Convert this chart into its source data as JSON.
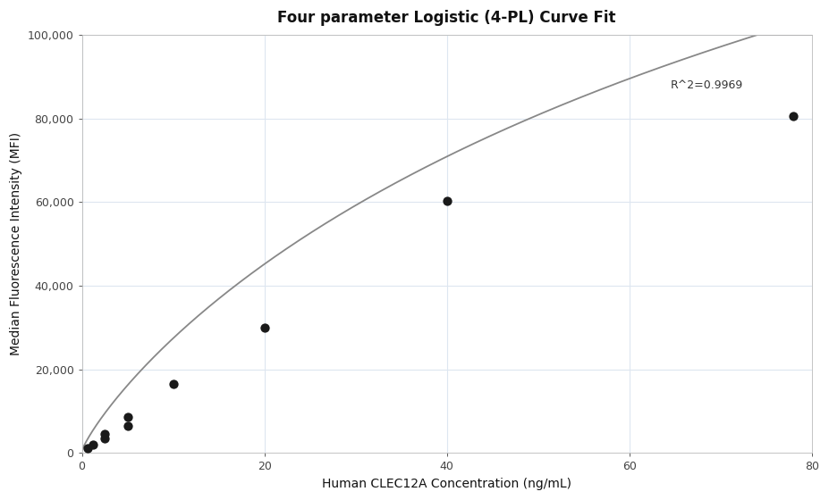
{
  "title": "Four parameter Logistic (4-PL) Curve Fit",
  "xlabel": "Human CLEC12A Concentration (ng/mL)",
  "ylabel": "Median Fluorescence Intensity (MFI)",
  "scatter_x": [
    0.625,
    1.25,
    2.5,
    2.5,
    5.0,
    5.0,
    10.0,
    20.0,
    40.0,
    78.0
  ],
  "scatter_y": [
    1200,
    2000,
    3500,
    4500,
    6500,
    8500,
    16500,
    30000,
    60200,
    80500
  ],
  "xlim": [
    0,
    80
  ],
  "ylim": [
    0,
    100000
  ],
  "xticks": [
    0,
    20,
    40,
    60,
    80
  ],
  "yticks": [
    0,
    20000,
    40000,
    60000,
    80000,
    100000
  ],
  "r_squared": "R^2=0.9969",
  "r2_x": 64.5,
  "r2_y": 86500,
  "curve_color": "#888888",
  "scatter_color": "#1a1a1a",
  "scatter_size": 55,
  "background_color": "#ffffff",
  "grid_color": "#dde6f0",
  "title_fontsize": 12,
  "label_fontsize": 10,
  "tick_fontsize": 9
}
